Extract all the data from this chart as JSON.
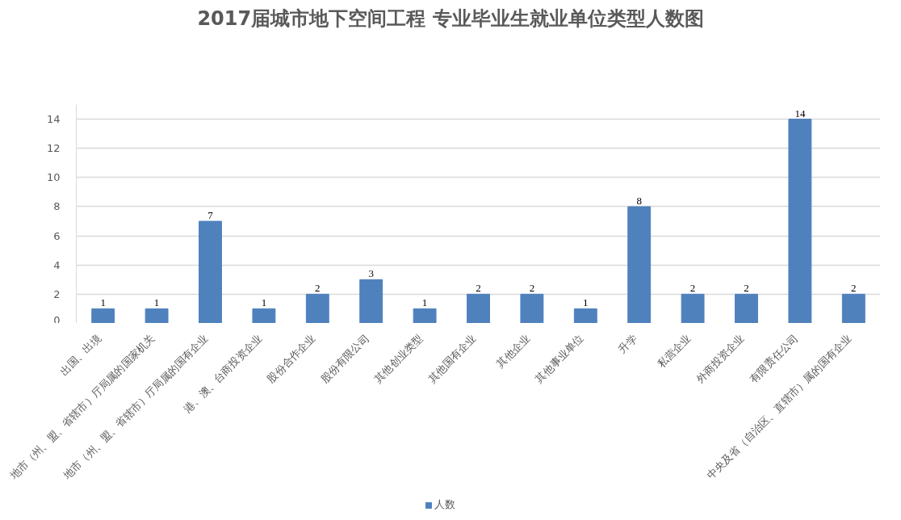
{
  "chart_data": {
    "type": "bar",
    "title": "2017届城市地下空间工程 专业毕业生就业单位类型人数图",
    "categories": [
      "出国、出境",
      "地市（州、盟、省辖市）厅局属的国家机关",
      "地市（州、盟、省辖市）厅局属的国有企业",
      "港、澳、台商投资企业",
      "股份合作企业",
      "股份有限公司",
      "其他创业类型",
      "其他国有企业",
      "其他企业",
      "其他事业单位",
      "升学",
      "私营企业",
      "外商投资企业",
      "有限责任公司",
      "中央及省（自治区、直辖市）属的国有企业"
    ],
    "series": [
      {
        "name": "人数",
        "color": "#4f81bd",
        "values": [
          1,
          1,
          7,
          1,
          2,
          3,
          1,
          2,
          2,
          1,
          8,
          2,
          2,
          14,
          2
        ]
      }
    ],
    "ylim": [
      0,
      15
    ],
    "yticks": [
      0,
      2,
      4,
      6,
      8,
      10,
      12,
      14
    ],
    "grid": "y",
    "legend": "bottom",
    "data_labels": true
  }
}
